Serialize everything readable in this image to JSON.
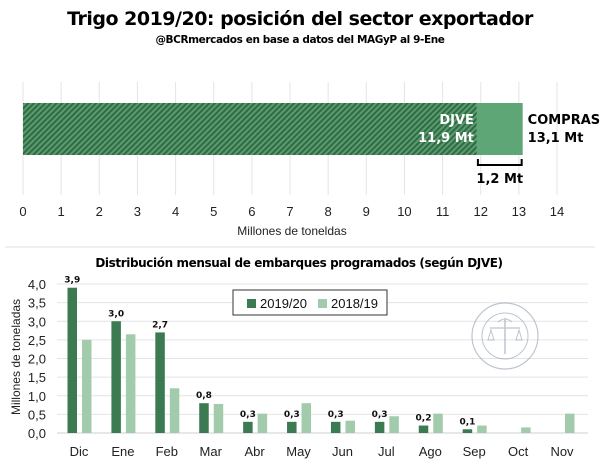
{
  "header": {
    "title": "Trigo 2019/20: posición del sector exportador",
    "subtitle": "@BCRmercados en base a datos del MAGyP al 9-Ene"
  },
  "chart_data": [
    {
      "type": "bar",
      "orientation": "horizontal",
      "stacked": true,
      "series": [
        {
          "name": "DJVE",
          "value": 11.9,
          "label_line1": "DJVE",
          "label_line2": "11,9 Mt",
          "pattern": "hatched",
          "color": "#3c7a52"
        },
        {
          "name": "COMPRAS",
          "value": 13.1,
          "label_line1": "COMPRAS",
          "label_line2": "13,1 Mt",
          "pattern": "solid",
          "color": "#5fa676"
        }
      ],
      "difference": {
        "from": 11.9,
        "to": 13.1,
        "label": "1,2 Mt"
      },
      "xlabel": "Millones de toneldas",
      "xlim": [
        0,
        14
      ],
      "xticks": [
        "0",
        "1",
        "2",
        "3",
        "4",
        "5",
        "6",
        "7",
        "8",
        "9",
        "10",
        "11",
        "12",
        "13",
        "14"
      ],
      "grid": true
    },
    {
      "type": "bar",
      "title": "Distribución mensual de embarques programados (según DJVE)",
      "categories": [
        "Dic",
        "Ene",
        "Feb",
        "Mar",
        "Abr",
        "May",
        "Jun",
        "Jul",
        "Ago",
        "Sep",
        "Oct",
        "Nov"
      ],
      "series": [
        {
          "name": "2019/20",
          "color": "#3c7a52",
          "values": [
            3.9,
            3.0,
            2.7,
            0.8,
            0.3,
            0.3,
            0.3,
            0.3,
            0.2,
            0.1,
            null,
            null
          ],
          "labels": [
            "3,9",
            "3,0",
            "2,7",
            "0,8",
            "0,3",
            "0,3",
            "0,3",
            "0,3",
            "0,2",
            "0,1",
            "",
            ""
          ]
        },
        {
          "name": "2018/19",
          "color": "#a2cbac",
          "values": [
            2.5,
            2.65,
            1.2,
            0.78,
            0.52,
            0.8,
            0.33,
            0.45,
            0.52,
            0.2,
            0.15,
            0.52
          ]
        }
      ],
      "ylabel": "Millones de toneladas",
      "ylim": [
        0,
        4.0
      ],
      "yticks": [
        "0,0",
        "0,5",
        "1,0",
        "1,5",
        "2,0",
        "2,5",
        "3,0",
        "3,5",
        "4,0"
      ],
      "legend": "top-center",
      "grid": true
    }
  ],
  "watermark": {
    "text": "BOLSA DE COMERCIO DE ROSARIO"
  }
}
